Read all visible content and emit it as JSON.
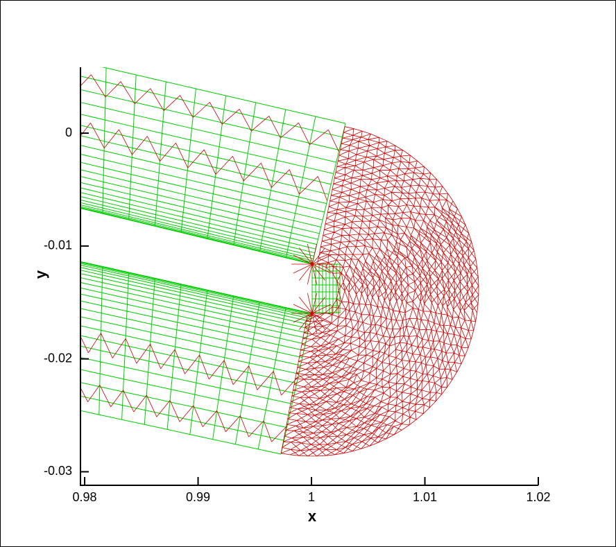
{
  "chart_data": {
    "type": "mesh",
    "xlabel": "x",
    "ylabel": "y",
    "xlim": [
      0.97963,
      1.02
    ],
    "ylim": [
      -0.0312,
      0.00584
    ],
    "xticks": [
      0.98,
      0.99,
      1,
      1.01,
      1.02
    ],
    "yticks": [
      0,
      -0.01,
      -0.02,
      -0.03
    ]
  }
}
